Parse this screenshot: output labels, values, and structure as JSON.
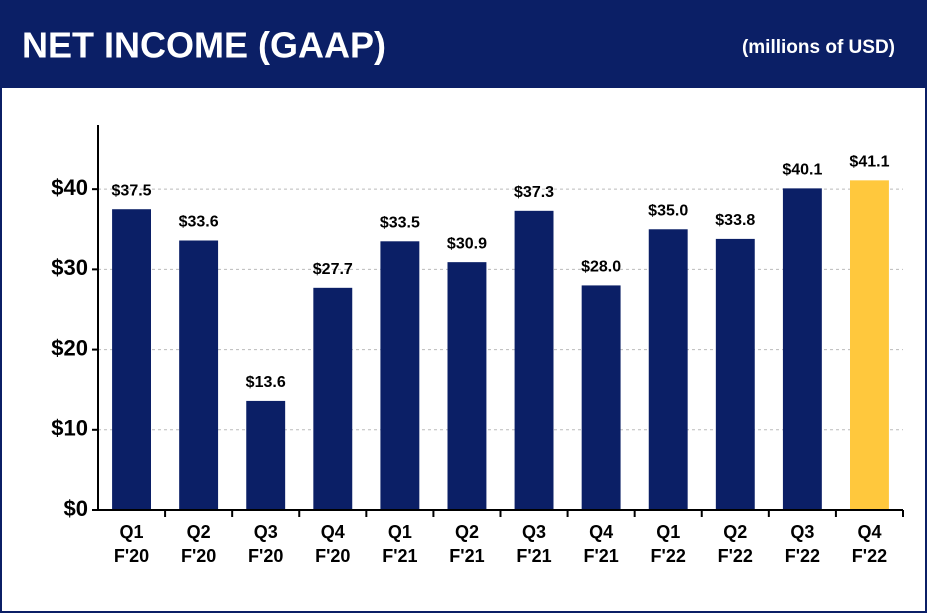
{
  "chart_data": {
    "type": "bar",
    "title": "NET INCOME (GAAP)",
    "subtitle": "(millions of USD)",
    "categories": [
      "Q1\nF'20",
      "Q2\nF'20",
      "Q3\nF'20",
      "Q4\nF'20",
      "Q1\nF'21",
      "Q2\nF'21",
      "Q3\nF'21",
      "Q4\nF'21",
      "Q1\nF'22",
      "Q2\nF'22",
      "Q3\nF'22",
      "Q4\nF'22"
    ],
    "values": [
      37.5,
      33.6,
      13.6,
      27.7,
      33.5,
      30.9,
      37.3,
      28.0,
      35.0,
      33.8,
      40.1,
      41.1
    ],
    "value_labels": [
      "$37.5",
      "$33.6",
      "$13.6",
      "$27.7",
      "$33.5",
      "$30.9",
      "$37.3",
      "$28.0",
      "$35.0",
      "$33.8",
      "$40.1",
      "$41.1"
    ],
    "colors": [
      "#0b1f66",
      "#0b1f66",
      "#0b1f66",
      "#0b1f66",
      "#0b1f66",
      "#0b1f66",
      "#0b1f66",
      "#0b1f66",
      "#0b1f66",
      "#0b1f66",
      "#0b1f66",
      "#ffc83d"
    ],
    "ylim": [
      0,
      48
    ],
    "yticks": [
      {
        "value": 0,
        "label": "$0"
      },
      {
        "value": 10,
        "label": "$10"
      },
      {
        "value": 20,
        "label": "$20"
      },
      {
        "value": 30,
        "label": "$30"
      },
      {
        "value": 40,
        "label": "$40"
      }
    ],
    "grid": true
  }
}
